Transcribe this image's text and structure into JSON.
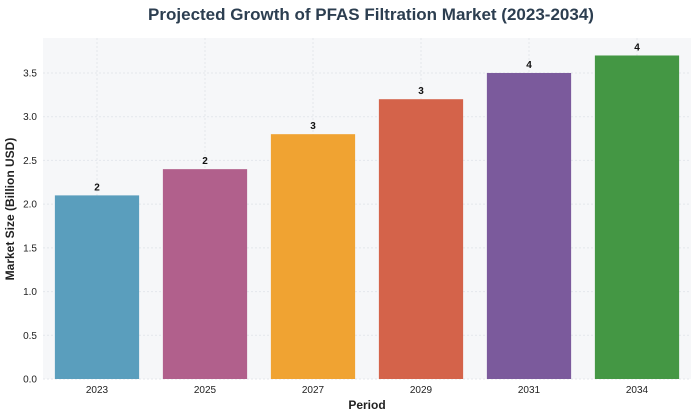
{
  "chart_data": {
    "type": "bar",
    "title": "Projected Growth of PFAS Filtration Market (2023-2034)",
    "xlabel": "Period",
    "ylabel": "Market Size (Billion USD)",
    "categories": [
      "2023",
      "2025",
      "2027",
      "2029",
      "2031",
      "2034"
    ],
    "values": [
      2.1,
      2.4,
      2.8,
      3.2,
      3.5,
      3.7
    ],
    "data_labels": [
      "2",
      "2",
      "3",
      "3",
      "4",
      "4"
    ],
    "colors": [
      "#5a9ebd",
      "#b1608c",
      "#f0a332",
      "#d4634a",
      "#7b5a9c",
      "#449744"
    ],
    "ylim": [
      0,
      3.9
    ],
    "yticks": [
      "0.0",
      "0.5",
      "1.0",
      "1.5",
      "2.0",
      "2.5",
      "3.0",
      "3.5"
    ],
    "grid": true,
    "plot_background": "#f6f7f9"
  }
}
